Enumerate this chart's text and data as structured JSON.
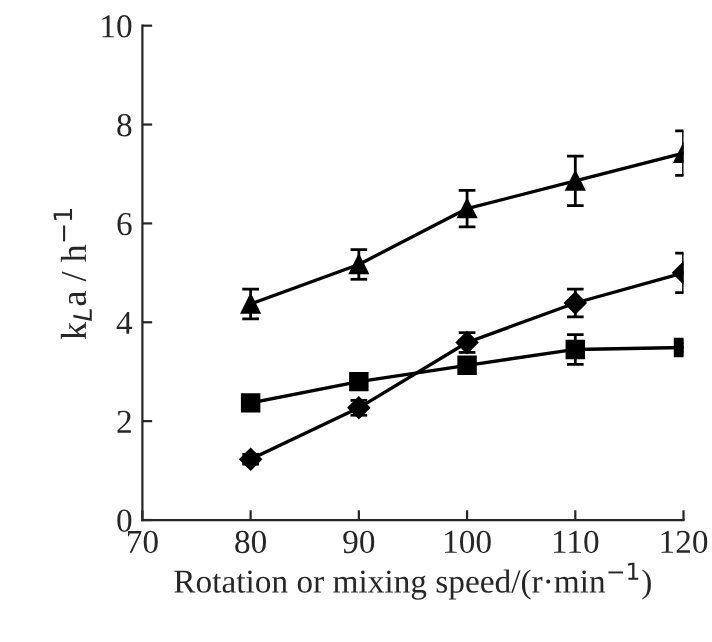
{
  "chart_data": {
    "type": "line",
    "xlabel": "Rotation or mixing speed/(r·min$^{−1}$)",
    "ylabel": "k$_{L}$a / h$^{−1}$",
    "x": [
      80,
      90,
      100,
      110,
      120
    ],
    "series": [
      {
        "color": "#000000",
        "marker": "triangle",
        "values": [
          4.37,
          5.17,
          6.3,
          6.86,
          7.42
        ],
        "errors": [
          0.3,
          0.3,
          0.37,
          0.5,
          0.45
        ]
      },
      {
        "color": "#000000",
        "marker": "diamond",
        "values": [
          1.23,
          2.27,
          3.59,
          4.39,
          5.0
        ],
        "errors": [
          0.1,
          0.15,
          0.2,
          0.28,
          0.4
        ]
      },
      {
        "color": "#000000",
        "marker": "square",
        "values": [
          2.37,
          2.8,
          3.13,
          3.45,
          3.49
        ],
        "errors": [
          0.1,
          0.1,
          0.15,
          0.3,
          0.1
        ]
      }
    ],
    "xlim": [
      70,
      120
    ],
    "xticks": [
      70,
      80,
      90,
      100,
      110,
      120
    ],
    "ylim": [
      0,
      10
    ],
    "yticks": [
      0,
      2,
      4,
      6,
      8,
      10
    ],
    "grid": false,
    "legend": false,
    "line_style": "solid"
  }
}
